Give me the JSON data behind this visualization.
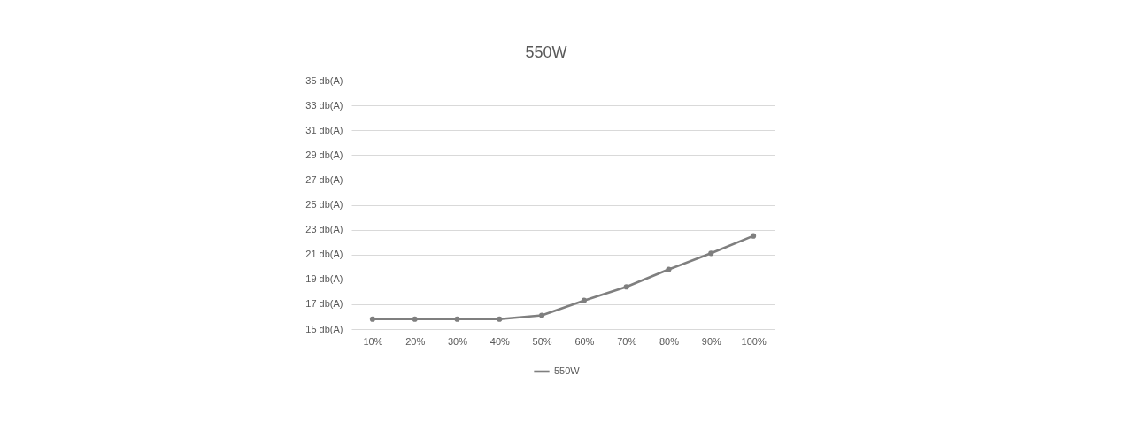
{
  "chart_data": {
    "type": "line",
    "title": "550W",
    "categories": [
      "10%",
      "20%",
      "30%",
      "40%",
      "50%",
      "60%",
      "70%",
      "80%",
      "90%",
      "100%"
    ],
    "series": [
      {
        "name": "550W",
        "color": "#7f7f7f",
        "values": [
          15.8,
          15.8,
          15.8,
          15.8,
          16.1,
          17.3,
          18.4,
          19.8,
          21.1,
          22.5
        ]
      }
    ],
    "ylim": [
      15,
      35
    ],
    "yticks": [
      {
        "value": 15,
        "label": "15 db(A)"
      },
      {
        "value": 17,
        "label": "17 db(A)"
      },
      {
        "value": 19,
        "label": "19 db(A)"
      },
      {
        "value": 21,
        "label": "21 db(A)"
      },
      {
        "value": 23,
        "label": "23 db(A)"
      },
      {
        "value": 25,
        "label": "25 db(A)"
      },
      {
        "value": 27,
        "label": "27 db(A)"
      },
      {
        "value": 29,
        "label": "29 db(A)"
      },
      {
        "value": 31,
        "label": "31 db(A)"
      },
      {
        "value": 33,
        "label": "33 db(A)"
      },
      {
        "value": 35,
        "label": "35 db(A)"
      }
    ],
    "grid": "y",
    "legend": "bottom",
    "marker": "circle",
    "line_style": "solid"
  }
}
